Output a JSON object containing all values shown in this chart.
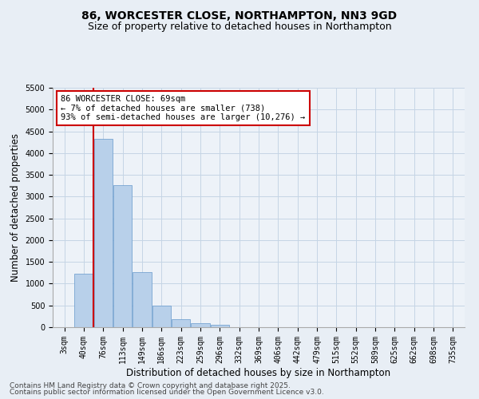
{
  "title": "86, WORCESTER CLOSE, NORTHAMPTON, NN3 9GD",
  "subtitle": "Size of property relative to detached houses in Northampton",
  "xlabel": "Distribution of detached houses by size in Northampton",
  "ylabel": "Number of detached properties",
  "bar_categories": [
    "3sqm",
    "40sqm",
    "76sqm",
    "113sqm",
    "149sqm",
    "186sqm",
    "223sqm",
    "259sqm",
    "296sqm",
    "332sqm",
    "369sqm",
    "406sqm",
    "442sqm",
    "479sqm",
    "515sqm",
    "552sqm",
    "589sqm",
    "625sqm",
    "662sqm",
    "698sqm",
    "735sqm"
  ],
  "bar_values": [
    0,
    1230,
    4320,
    3270,
    1270,
    490,
    185,
    95,
    50,
    0,
    0,
    0,
    0,
    0,
    0,
    0,
    0,
    0,
    0,
    0,
    0
  ],
  "bar_color": "#b8d0ea",
  "bar_edge_color": "#6699cc",
  "vline_color": "#cc0000",
  "ylim": [
    0,
    5500
  ],
  "yticks": [
    0,
    500,
    1000,
    1500,
    2000,
    2500,
    3000,
    3500,
    4000,
    4500,
    5000,
    5500
  ],
  "annotation_title": "86 WORCESTER CLOSE: 69sqm",
  "annotation_line1": "← 7% of detached houses are smaller (738)",
  "annotation_line2": "93% of semi-detached houses are larger (10,276) →",
  "annotation_box_color": "#cc0000",
  "footer_line1": "Contains HM Land Registry data © Crown copyright and database right 2025.",
  "footer_line2": "Contains public sector information licensed under the Open Government Licence v3.0.",
  "bg_color": "#e8eef5",
  "plot_bg_color": "#edf2f8",
  "grid_color": "#c5d5e5",
  "title_fontsize": 10,
  "subtitle_fontsize": 9,
  "axis_label_fontsize": 8.5,
  "tick_fontsize": 7,
  "footer_fontsize": 6.5,
  "annotation_fontsize": 7.5
}
